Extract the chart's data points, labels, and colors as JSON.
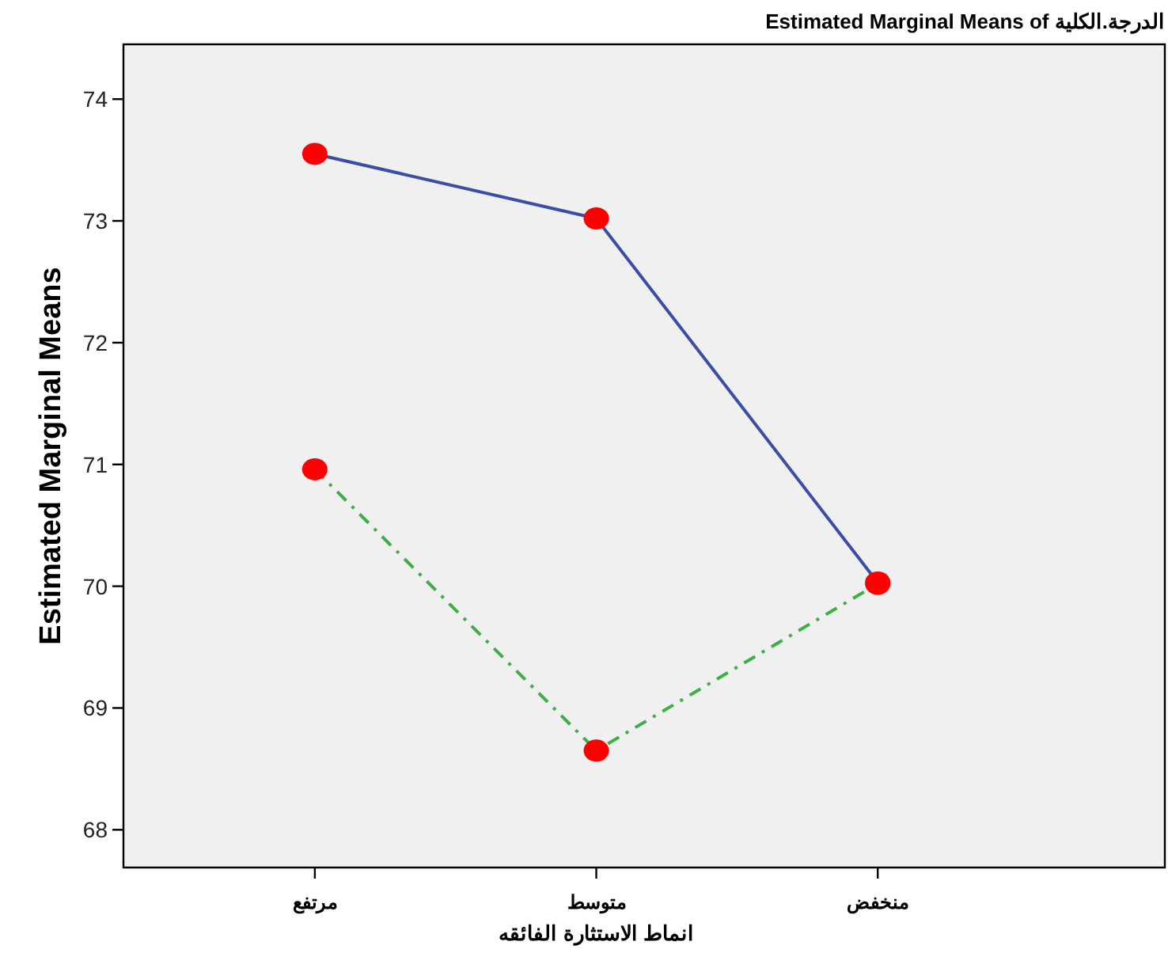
{
  "chart_data": {
    "type": "line",
    "title": "Estimated Marginal Means of الدرجة.الكلية",
    "xlabel": "انماط الاستثارة الفائقه",
    "ylabel": "Estimated Marginal Means",
    "categories": [
      "مرتفع",
      "متوسط",
      "منخفض"
    ],
    "series": [
      {
        "color": "#3b4ea6",
        "line_style": "solid",
        "values": [
          73.55,
          73.02,
          70.03
        ]
      },
      {
        "color": "#3cb043",
        "line_style": "dashed",
        "values": [
          70.96,
          68.65,
          70.02
        ]
      }
    ],
    "ylim": [
      67.69,
      74.45
    ],
    "yticks": [
      68,
      69,
      70,
      71,
      72,
      73,
      74
    ],
    "marker": "circle",
    "grid": false
  }
}
